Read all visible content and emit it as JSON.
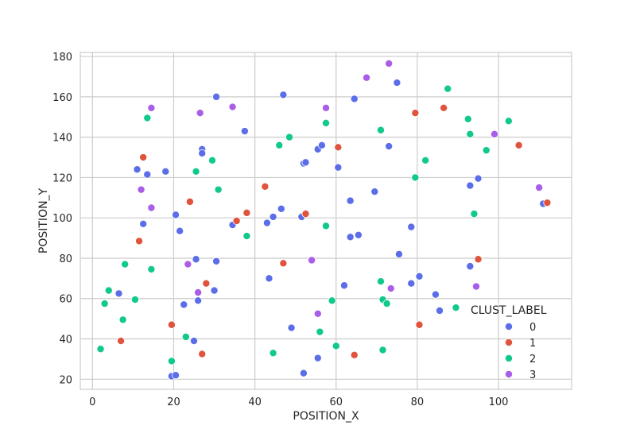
{
  "chart_data": {
    "type": "scatter",
    "xlabel": "POSITION_X",
    "ylabel": "POSITION_Y",
    "xlim": [
      -3,
      118
    ],
    "ylim": [
      15,
      182
    ],
    "xticks": [
      0,
      20,
      40,
      60,
      80,
      100
    ],
    "yticks": [
      20,
      40,
      60,
      80,
      100,
      120,
      140,
      160,
      180
    ],
    "grid": true,
    "legend_title": "CLUST_LABEL",
    "legend_position": "bottom-right",
    "colors": {
      "0": "#5b6ee8",
      "1": "#e0533c",
      "2": "#10c98a",
      "3": "#a95de8"
    },
    "series": [
      {
        "name": "0",
        "points": [
          [
            6.5,
            62.5
          ],
          [
            11,
            124
          ],
          [
            12.5,
            97
          ],
          [
            13.5,
            121.5
          ],
          [
            18,
            123
          ],
          [
            19.5,
            21.5
          ],
          [
            20.5,
            22
          ],
          [
            20.5,
            101.5
          ],
          [
            21.5,
            93.5
          ],
          [
            22.5,
            57
          ],
          [
            25,
            39
          ],
          [
            25.5,
            79.5
          ],
          [
            26,
            59
          ],
          [
            27,
            134
          ],
          [
            27,
            132
          ],
          [
            30,
            64
          ],
          [
            30.5,
            78.5
          ],
          [
            30.5,
            160
          ],
          [
            37.5,
            143
          ],
          [
            34.5,
            96.5
          ],
          [
            43,
            97.5
          ],
          [
            43.5,
            70
          ],
          [
            44.5,
            100.5
          ],
          [
            46.5,
            104.5
          ],
          [
            47,
            161
          ],
          [
            49,
            45.5
          ],
          [
            51.5,
            100.5
          ],
          [
            52,
            23
          ],
          [
            52,
            127
          ],
          [
            52.5,
            127.5
          ],
          [
            55.5,
            134
          ],
          [
            55.5,
            30.5
          ],
          [
            56.5,
            136
          ],
          [
            60.5,
            125
          ],
          [
            62,
            66.5
          ],
          [
            63.5,
            108.5
          ],
          [
            63.5,
            90.5
          ],
          [
            64.5,
            159
          ],
          [
            65.5,
            91.5
          ],
          [
            69.5,
            113
          ],
          [
            73,
            135.5
          ],
          [
            75,
            167
          ],
          [
            75.5,
            82
          ],
          [
            78.5,
            95.5
          ],
          [
            78.5,
            67.5
          ],
          [
            80.5,
            71
          ],
          [
            84.5,
            62
          ],
          [
            85.5,
            54
          ],
          [
            93,
            116
          ],
          [
            93,
            76
          ],
          [
            95,
            119.5
          ],
          [
            111,
            107
          ]
        ]
      },
      {
        "name": "1",
        "points": [
          [
            7,
            39
          ],
          [
            11.5,
            88.5
          ],
          [
            12.5,
            130
          ],
          [
            19.5,
            47
          ],
          [
            24,
            108
          ],
          [
            27,
            32.5
          ],
          [
            28,
            67.5
          ],
          [
            35.5,
            98.5
          ],
          [
            38,
            102.5
          ],
          [
            42.5,
            115.5
          ],
          [
            47,
            77.5
          ],
          [
            52.5,
            102
          ],
          [
            60.5,
            135
          ],
          [
            64.5,
            32
          ],
          [
            79.5,
            152
          ],
          [
            80.5,
            47
          ],
          [
            86.5,
            154.5
          ],
          [
            95,
            79.5
          ],
          [
            105,
            136
          ],
          [
            112,
            107.5
          ]
        ]
      },
      {
        "name": "2",
        "points": [
          [
            2,
            35
          ],
          [
            3,
            57.5
          ],
          [
            4,
            64
          ],
          [
            7.5,
            49.5
          ],
          [
            8,
            77
          ],
          [
            10.5,
            59.5
          ],
          [
            13.5,
            149.5
          ],
          [
            14.5,
            74.5
          ],
          [
            19.5,
            29
          ],
          [
            23,
            41
          ],
          [
            25.5,
            123
          ],
          [
            29.5,
            128.5
          ],
          [
            31,
            114
          ],
          [
            38,
            91
          ],
          [
            44.5,
            33
          ],
          [
            46,
            136
          ],
          [
            48.5,
            140
          ],
          [
            56,
            43.5
          ],
          [
            57.5,
            147
          ],
          [
            57.5,
            96
          ],
          [
            59,
            59
          ],
          [
            60,
            36.5
          ],
          [
            71,
            143.5
          ],
          [
            71,
            68.5
          ],
          [
            71.5,
            34.5
          ],
          [
            71.5,
            59.5
          ],
          [
            72.5,
            57.5
          ],
          [
            79.5,
            120
          ],
          [
            82,
            128.5
          ],
          [
            87.5,
            164
          ],
          [
            89.5,
            55.5
          ],
          [
            92.5,
            149
          ],
          [
            93,
            141.5
          ],
          [
            94,
            102
          ],
          [
            97,
            133.5
          ],
          [
            102.5,
            148
          ]
        ]
      },
      {
        "name": "3",
        "points": [
          [
            12,
            114
          ],
          [
            14.5,
            154.5
          ],
          [
            14.5,
            105
          ],
          [
            23.5,
            77
          ],
          [
            26,
            63
          ],
          [
            26.5,
            152
          ],
          [
            34.5,
            155
          ],
          [
            54,
            79
          ],
          [
            55.5,
            52.5
          ],
          [
            57.5,
            154.5
          ],
          [
            67.5,
            169.5
          ],
          [
            73,
            176.5
          ],
          [
            73.5,
            65
          ],
          [
            94.5,
            66
          ],
          [
            99,
            141.5
          ],
          [
            110,
            115
          ]
        ]
      }
    ]
  }
}
